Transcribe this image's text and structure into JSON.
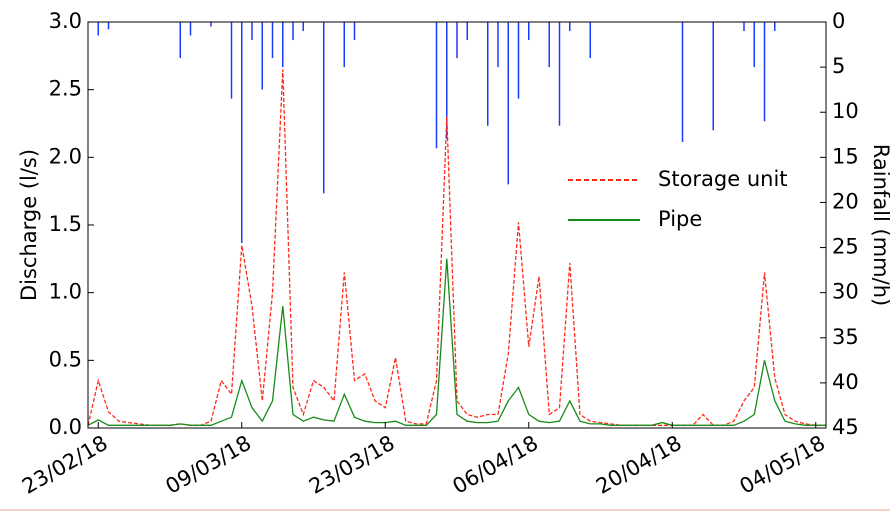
{
  "chart_data": {
    "type": "line",
    "x": [
      "22/02/18",
      "23/02/18",
      "24/02/18",
      "25/02/18",
      "26/02/18",
      "27/02/18",
      "28/02/18",
      "01/03/18",
      "02/03/18",
      "03/03/18",
      "04/03/18",
      "05/03/18",
      "06/03/18",
      "07/03/18",
      "08/03/18",
      "09/03/18",
      "10/03/18",
      "11/03/18",
      "12/03/18",
      "13/03/18",
      "14/03/18",
      "15/03/18",
      "16/03/18",
      "17/03/18",
      "18/03/18",
      "19/03/18",
      "20/03/18",
      "21/03/18",
      "22/03/18",
      "23/03/18",
      "24/03/18",
      "25/03/18",
      "26/03/18",
      "27/03/18",
      "28/03/18",
      "29/03/18",
      "30/03/18",
      "31/03/18",
      "01/04/18",
      "02/04/18",
      "03/04/18",
      "04/04/18",
      "05/04/18",
      "06/04/18",
      "07/04/18",
      "08/04/18",
      "09/04/18",
      "10/04/18",
      "11/04/18",
      "12/04/18",
      "13/04/18",
      "14/04/18",
      "15/04/18",
      "16/04/18",
      "17/04/18",
      "18/04/18",
      "19/04/18",
      "20/04/18",
      "21/04/18",
      "22/04/18",
      "23/04/18",
      "24/04/18",
      "25/04/18",
      "26/04/18",
      "27/04/18",
      "28/04/18",
      "29/04/18",
      "30/04/18",
      "01/05/18",
      "02/05/18",
      "03/05/18",
      "04/05/18",
      "05/05/18"
    ],
    "xlim": [
      "22/02/18",
      "05/05/18"
    ],
    "xticks": [
      "23/02/18",
      "09/03/18",
      "23/03/18",
      "06/04/18",
      "20/04/18",
      "04/05/18"
    ],
    "y_label": "Discharge (l/s)",
    "ylim": [
      0,
      3
    ],
    "yticks": [
      {
        "value": 0,
        "label": "0.0"
      },
      0.5,
      {
        "value": 1,
        "label": "1.0"
      },
      1.5,
      {
        "value": 2,
        "label": "2.0"
      },
      2.5,
      {
        "value": 3,
        "label": "3.0"
      }
    ],
    "y2_label": "Rainfall (mm/h)",
    "y2lim": [
      0,
      45
    ],
    "y2_inverted": true,
    "y2ticks": [
      0,
      5,
      10,
      15,
      20,
      25,
      30,
      35,
      40,
      45
    ],
    "legend": "center right",
    "series": [
      {
        "name": "Storage unit",
        "color": "#ff2a1a",
        "dash": true,
        "values": [
          0.02,
          0.35,
          0.12,
          0.05,
          0.04,
          0.03,
          0.02,
          0.02,
          0.02,
          0.03,
          0.02,
          0.02,
          0.05,
          0.35,
          0.25,
          1.35,
          0.9,
          0.2,
          1.0,
          2.65,
          0.3,
          0.1,
          0.35,
          0.3,
          0.2,
          1.15,
          0.35,
          0.4,
          0.2,
          0.15,
          0.52,
          0.05,
          0.03,
          0.03,
          0.35,
          2.3,
          0.2,
          0.1,
          0.08,
          0.1,
          0.1,
          0.55,
          1.52,
          0.6,
          1.12,
          0.1,
          0.15,
          1.22,
          0.1,
          0.05,
          0.04,
          0.03,
          0.02,
          0.02,
          0.02,
          0.02,
          0.02,
          0.02,
          0.02,
          0.02,
          0.1,
          0.02,
          0.02,
          0.05,
          0.2,
          0.3,
          1.15,
          0.37,
          0.1,
          0.05,
          0.03,
          0.02,
          0.02
        ]
      },
      {
        "name": "Pipe",
        "color": "#1a8a1a",
        "dash": false,
        "values": [
          0.02,
          0.06,
          0.02,
          0.02,
          0.02,
          0.02,
          0.02,
          0.02,
          0.02,
          0.03,
          0.02,
          0.02,
          0.02,
          0.05,
          0.08,
          0.35,
          0.15,
          0.05,
          0.2,
          0.9,
          0.1,
          0.05,
          0.08,
          0.06,
          0.05,
          0.25,
          0.08,
          0.05,
          0.04,
          0.04,
          0.05,
          0.02,
          0.02,
          0.02,
          0.1,
          1.25,
          0.1,
          0.05,
          0.04,
          0.04,
          0.05,
          0.2,
          0.3,
          0.1,
          0.05,
          0.04,
          0.05,
          0.2,
          0.05,
          0.03,
          0.03,
          0.02,
          0.02,
          0.02,
          0.02,
          0.02,
          0.04,
          0.02,
          0.02,
          0.02,
          0.02,
          0.02,
          0.02,
          0.02,
          0.05,
          0.1,
          0.5,
          0.2,
          0.05,
          0.03,
          0.02,
          0.02,
          0.02
        ]
      }
    ],
    "rainfall": {
      "color": "#1a3cff",
      "axis": "y2",
      "values": [
        0,
        1.5,
        0.8,
        0,
        0,
        0,
        0,
        0,
        0,
        4,
        1.5,
        0,
        0.5,
        0,
        8.5,
        24.5,
        2,
        7.5,
        4,
        5,
        2,
        1,
        0,
        19,
        0,
        5,
        2,
        0,
        0,
        0,
        0,
        0,
        0,
        0,
        14,
        13,
        4,
        2,
        0,
        11.5,
        5,
        18,
        8.5,
        2,
        0,
        5,
        11.5,
        1,
        0,
        4,
        0,
        0,
        0,
        0,
        0,
        0,
        0,
        0,
        13.3,
        0,
        0,
        12,
        0,
        0,
        1,
        5,
        11,
        1,
        0,
        0,
        0,
        0,
        0
      ]
    }
  }
}
